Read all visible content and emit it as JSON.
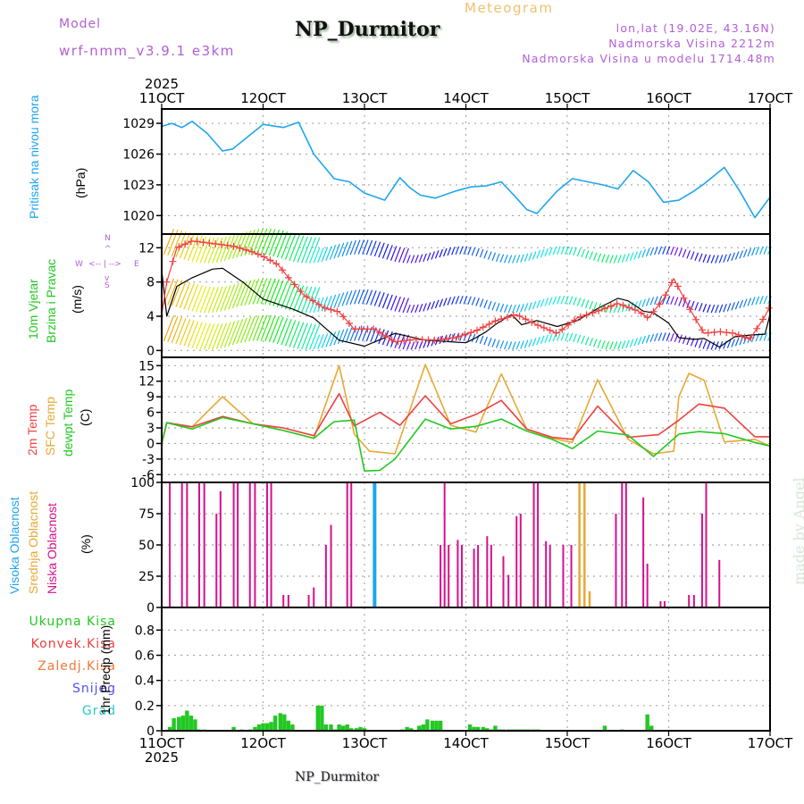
{
  "header": {
    "model_label": "Model",
    "model_name": "wrf-nmm_v3.9.1  e3km",
    "station": "NP_Durmitor",
    "product": "Meteogram",
    "lonlat": "lon,lat (19.02E, 43.16N)",
    "elevation": "Nadmorska Visina 2212m",
    "model_elevation": "Nadmorska Visina u modelu 1714.48m"
  },
  "footer": {
    "station": "NP_Durmitor",
    "credit": "made by Angel"
  },
  "time_axis": {
    "year": "2025",
    "ticks": [
      "11OCT",
      "12OCT",
      "13OCT",
      "14OCT",
      "15OCT",
      "16OCT",
      "17OCT"
    ]
  },
  "colors": {
    "pressure": "#1fa5ef",
    "t2m": "#ef3f3f",
    "tsfc": "#e8a832",
    "dewpt": "#22c822",
    "cloud_high": "#1fa5ef",
    "cloud_mid": "#e8a832",
    "cloud_low": "#d8108a",
    "precip_total": "#22c822",
    "precip_conv": "#ef3f3f",
    "precip_frz": "#f07838",
    "snow": "#5050f0",
    "hail": "#28c8c8",
    "compass": "#b05fd6"
  },
  "chart_data": [
    {
      "type": "line",
      "title": "Pritisak na nivou mora",
      "ylabel": "(hPa)",
      "ylim": [
        1018.2,
        1030.4
      ],
      "yticks": [
        "1020",
        "1023",
        "1026",
        "1029"
      ],
      "grid": true,
      "series": [
        {
          "name": "Pritisak na nivou mora",
          "x_days": [
            0,
            0.1,
            0.2,
            0.3,
            0.45,
            0.6,
            0.7,
            0.8,
            1.0,
            1.2,
            1.35,
            1.5,
            1.7,
            1.85,
            2.0,
            2.2,
            2.35,
            2.45,
            2.55,
            2.7,
            2.9,
            3.05,
            3.2,
            3.35,
            3.5,
            3.6,
            3.7,
            3.9,
            4.05,
            4.2,
            4.35,
            4.5,
            4.65,
            4.8,
            4.95,
            5.1,
            5.25,
            5.35,
            5.55,
            5.7,
            5.85,
            6.0
          ],
          "values": [
            1028.7,
            1029.0,
            1028.6,
            1029.2,
            1028.0,
            1026.3,
            1026.5,
            1027.3,
            1028.9,
            1028.6,
            1029.1,
            1026.0,
            1023.6,
            1023.3,
            1022.2,
            1021.5,
            1023.7,
            1022.7,
            1022.0,
            1021.7,
            1022.4,
            1022.8,
            1022.9,
            1023.3,
            1021.7,
            1020.6,
            1020.2,
            1022.4,
            1023.6,
            1023.3,
            1023.0,
            1022.6,
            1024.4,
            1023.3,
            1021.3,
            1021.5,
            1022.4,
            1023.1,
            1024.7,
            1022.4,
            1019.8,
            1021.8
          ]
        }
      ]
    },
    {
      "type": "line",
      "title": "10m Vjetar Brzina i Pravac",
      "ylabel": "(m/s)",
      "ylim": [
        -0.8,
        13.6
      ],
      "yticks": [
        "0",
        "4",
        "8",
        "12"
      ],
      "grid": true,
      "compass": {
        "n": "N",
        "s": "S",
        "w": "W",
        "e": "E"
      },
      "series": [
        {
          "name": "10m speed",
          "x_days": [
            0,
            0.05,
            0.15,
            0.3,
            0.5,
            0.6,
            0.8,
            1.0,
            1.3,
            1.5,
            1.75,
            2.0,
            2.3,
            2.6,
            3.0,
            3.1,
            3.2,
            3.3,
            3.45,
            3.55,
            3.7,
            3.9,
            4.1,
            4.3,
            4.5,
            4.6,
            4.75,
            4.85,
            4.95,
            5.0,
            5.1,
            5.25,
            5.35,
            5.5,
            5.65,
            5.8,
            5.95,
            6.0
          ],
          "values": [
            9.4,
            4.0,
            7.5,
            8.5,
            9.5,
            9.6,
            8.0,
            6.0,
            4.8,
            3.8,
            1.2,
            0.5,
            2.0,
            1.2,
            0.9,
            1.5,
            2.2,
            3.1,
            4.2,
            3.0,
            3.5,
            2.8,
            3.5,
            4.9,
            6.1,
            5.8,
            4.6,
            4.4,
            3.6,
            3.2,
            1.5,
            1.3,
            1.4,
            0.4,
            1.6,
            1.8,
            1.9,
            4.2
          ]
        },
        {
          "name": "gust",
          "x_days": [
            0,
            0.05,
            0.15,
            0.3,
            0.5,
            0.7,
            0.9,
            1.0,
            1.15,
            1.25,
            1.4,
            1.6,
            1.75,
            1.9,
            2.1,
            2.3,
            2.5,
            2.7,
            2.9,
            3.1,
            3.3,
            3.5,
            3.7,
            3.9,
            4.1,
            4.3,
            4.5,
            4.7,
            4.8,
            4.95,
            5.05,
            5.2,
            5.35,
            5.5,
            5.65,
            5.8,
            5.95,
            6.0
          ],
          "values": [
            4.2,
            8.0,
            12.0,
            12.8,
            12.5,
            12.2,
            11.5,
            11.0,
            10.0,
            8.5,
            6.5,
            5.0,
            4.5,
            2.5,
            2.5,
            1.0,
            1.3,
            1.2,
            1.5,
            2.3,
            3.5,
            4.2,
            3.0,
            2.0,
            3.8,
            4.6,
            5.5,
            4.6,
            3.8,
            6.0,
            8.4,
            5.0,
            2.0,
            2.2,
            2.0,
            1.3,
            4.0,
            5.2
          ]
        }
      ],
      "wind_barb_rows_speed_levels": [
        0,
        4.5,
        10.3
      ]
    },
    {
      "type": "line",
      "title": "2m Temp / SFC Temp / dewpt Temp",
      "ylabel": "(C)",
      "ylim": [
        -7.5,
        16.6
      ],
      "yticks": [
        "-6",
        "-3",
        "0",
        "3",
        "6",
        "9",
        "12",
        "15"
      ],
      "grid": true,
      "series": [
        {
          "name": "2m Temp",
          "x_days": [
            0,
            0.05,
            0.3,
            0.6,
            0.9,
            1.2,
            1.5,
            1.75,
            1.9,
            2.15,
            2.35,
            2.6,
            2.85,
            3.1,
            3.35,
            3.6,
            3.85,
            4.05,
            4.3,
            4.6,
            4.9,
            5.1,
            5.3,
            5.55,
            5.85,
            6.0
          ],
          "values": [
            0,
            4.0,
            3.2,
            5.2,
            3.8,
            3.0,
            1.5,
            9.6,
            3.4,
            6.0,
            3.5,
            9.2,
            3.8,
            5.6,
            8.3,
            2.8,
            1.2,
            0.8,
            7.2,
            1.2,
            1.7,
            4.5,
            7.6,
            6.8,
            1.3,
            1.3
          ]
        },
        {
          "name": "SFC Temp",
          "x_days": [
            0,
            0.05,
            0.3,
            0.6,
            0.9,
            1.2,
            1.5,
            1.75,
            1.9,
            2.05,
            2.3,
            2.6,
            2.85,
            3.1,
            3.35,
            3.6,
            3.85,
            4.05,
            4.3,
            4.6,
            4.85,
            5.05,
            5.1,
            5.2,
            5.35,
            5.55,
            5.85,
            6.0
          ],
          "values": [
            0,
            4.0,
            3.2,
            9.0,
            3.8,
            2.5,
            1.0,
            15.0,
            1.8,
            -1.5,
            -2.0,
            15.2,
            3.5,
            2.2,
            13.4,
            2.8,
            1.0,
            0.2,
            12.3,
            0.8,
            -2.0,
            -1.5,
            9.0,
            13.5,
            12.2,
            0.3,
            0.8,
            -0.5
          ]
        },
        {
          "name": "dewpt Temp",
          "x_days": [
            0,
            0.05,
            0.3,
            0.6,
            0.9,
            1.2,
            1.5,
            1.7,
            1.9,
            2.0,
            2.15,
            2.3,
            2.6,
            2.85,
            3.1,
            3.35,
            3.6,
            3.85,
            4.05,
            4.3,
            4.6,
            4.85,
            5.1,
            5.3,
            5.55,
            5.85,
            6.0
          ],
          "values": [
            0,
            4.0,
            2.8,
            5.0,
            3.8,
            2.5,
            1.0,
            4.2,
            4.5,
            -5.3,
            -5.2,
            -3.0,
            4.7,
            2.8,
            3.3,
            4.7,
            2.4,
            0.8,
            -1.0,
            2.4,
            1.6,
            -2.5,
            1.8,
            2.3,
            1.9,
            0.2,
            -0.5
          ]
        }
      ]
    },
    {
      "type": "bar",
      "title": "Visoka / Srednja / Niska Oblacnost",
      "ylabel": "(%)",
      "ylim": [
        0,
        100
      ],
      "yticks": [
        "0",
        "25",
        "50",
        "75",
        "100"
      ],
      "grid": true,
      "series": [
        {
          "name": "Visoka Oblacnost",
          "x_days": [
            2.1
          ],
          "values": [
            100
          ]
        },
        {
          "name": "Srednja Oblacnost",
          "x_days": [
            4.12,
            4.17,
            4.22
          ],
          "values": [
            100,
            100,
            13
          ]
        },
        {
          "name": "Niska Oblacnost",
          "x_days": [
            0.08,
            0.2,
            0.25,
            0.37,
            0.42,
            0.54,
            0.58,
            0.71,
            0.75,
            0.87,
            0.92,
            1.04,
            1.08,
            1.2,
            1.25,
            1.45,
            1.5,
            1.62,
            1.67,
            1.83,
            1.87,
            2.75,
            2.79,
            2.83,
            2.92,
            2.96,
            3.08,
            3.12,
            3.21,
            3.25,
            3.37,
            3.42,
            3.5,
            3.54,
            3.67,
            3.71,
            3.79,
            3.83,
            3.96,
            4.04,
            4.48,
            4.54,
            4.58,
            4.75,
            4.79,
            4.92,
            4.96,
            5.2,
            5.25,
            5.33,
            5.37,
            5.5,
            5.54,
            5.67
          ],
          "values": [
            100,
            100,
            100,
            100,
            100,
            75,
            93,
            100,
            100,
            100,
            100,
            100,
            100,
            10,
            10,
            10,
            16,
            50,
            66,
            100,
            100,
            50,
            100,
            50,
            54,
            50,
            47,
            50,
            57,
            50,
            41,
            26,
            73,
            75,
            100,
            100,
            53,
            50,
            50,
            50,
            75,
            100,
            100,
            88,
            35,
            5,
            5,
            10,
            10,
            75,
            100,
            38,
            0,
            0
          ]
        }
      ]
    },
    {
      "type": "bar",
      "title": "1hr Precip",
      "ylabel": "1hr Precip (mm)",
      "ylim": [
        0,
        0.98
      ],
      "yticks": [
        "0",
        "0.2",
        "0.4",
        "0.6",
        "0.8"
      ],
      "grid": true,
      "legend": [
        "Ukupna Kisa",
        "Konvek.Kisa",
        "Zaledj.Kisa",
        "Snijeg",
        "Grad"
      ],
      "series": [
        {
          "name": "Ukupna Kisa",
          "x_days": [
            0.08,
            0.12,
            0.17,
            0.21,
            0.25,
            0.29,
            0.33,
            0.37,
            0.42,
            0.71,
            0.79,
            0.87,
            0.92,
            0.96,
            1.0,
            1.04,
            1.08,
            1.12,
            1.17,
            1.21,
            1.25,
            1.29,
            1.54,
            1.58,
            1.62,
            1.67,
            1.71,
            1.75,
            1.79,
            1.83,
            1.87,
            1.92,
            1.96,
            2.0,
            2.37,
            2.42,
            2.46,
            2.54,
            2.58,
            2.62,
            2.67,
            2.71,
            2.75,
            3.04,
            3.08,
            3.12,
            3.17,
            3.21,
            3.25,
            3.29,
            3.33,
            3.37,
            3.42,
            3.46,
            3.5,
            3.54,
            3.58,
            3.62,
            3.67,
            3.71,
            4.37,
            4.54,
            4.79,
            4.83
          ],
          "values": [
            0.03,
            0.1,
            0.11,
            0.12,
            0.16,
            0.12,
            0.09,
            0.01,
            0.01,
            0.03,
            0.01,
            0.01,
            0.03,
            0.05,
            0.06,
            0.06,
            0.07,
            0.12,
            0.14,
            0.13,
            0.08,
            0.05,
            0.2,
            0.2,
            0.05,
            0.05,
            0.01,
            0.05,
            0.04,
            0.05,
            0.02,
            0.02,
            0.03,
            0.02,
            0.01,
            0.03,
            0.02,
            0.04,
            0.05,
            0.09,
            0.08,
            0.08,
            0.08,
            0.05,
            0.03,
            0.03,
            0.03,
            0.02,
            0.01,
            0.04,
            0.01,
            0.01,
            0.01,
            0.01,
            0.01,
            0.01,
            0.01,
            0.01,
            0.01,
            0.01,
            0.04,
            0.01,
            0.13,
            0.04
          ]
        }
      ]
    }
  ]
}
